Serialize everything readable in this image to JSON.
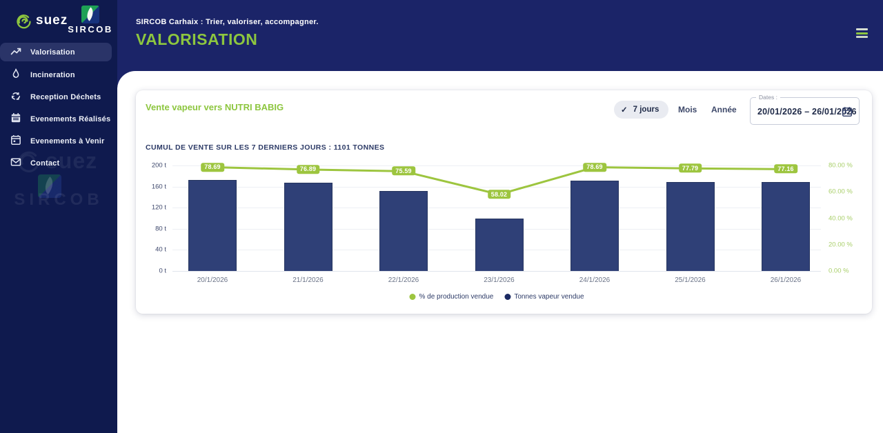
{
  "sidebar": {
    "suez_logo_text": "suez",
    "sircob_logo_text": "SIRCOB",
    "items": [
      {
        "label": "Valorisation",
        "icon": "trend-chart-icon",
        "active": true
      },
      {
        "label": "Incineration",
        "icon": "flame-icon",
        "active": false
      },
      {
        "label": "Reception Déchets",
        "icon": "recycle-icon",
        "active": false
      },
      {
        "label": "Evenements Réalisés",
        "icon": "calendar-filled-icon",
        "active": false
      },
      {
        "label": "Evenements à Venir",
        "icon": "calendar-outline-icon",
        "active": false
      },
      {
        "label": "Contact",
        "icon": "envelope-icon",
        "active": false
      }
    ],
    "watermark_suez_text": "suez",
    "watermark_sircob_text": "SIRCOB"
  },
  "header": {
    "subtitle": "SIRCOB Carhaix : Trier, valoriser, accompagner.",
    "title": "VALORISATION"
  },
  "icons": {
    "check": "✓"
  },
  "card": {
    "title": "Vente vapeur vers NUTRI BABIG",
    "summary": "CUMUL DE VENTE SUR LES 7 DERNIERS JOURS : 1101 TONNES",
    "toolbar": {
      "options": [
        "7 jours",
        "Mois",
        "Année"
      ],
      "selected": "7 jours",
      "dates_label": "Dates :",
      "dates_value": "20/01/2026 – 26/01/2026"
    }
  },
  "chart_data": {
    "type": "bar",
    "categories": [
      "20/1/2026",
      "21/1/2026",
      "22/1/2026",
      "23/1/2026",
      "24/1/2026",
      "25/1/2026",
      "26/1/2026"
    ],
    "series": [
      {
        "name": "Tonnes vapeur vendue",
        "type": "bar",
        "axis": "left",
        "color": "#2f4077",
        "values": [
          172,
          168,
          152,
          100,
          171,
          169,
          169
        ]
      },
      {
        "name": "% de production vendue",
        "type": "line",
        "axis": "right",
        "color": "#9dc53f",
        "values": [
          78.69,
          76.89,
          75.59,
          58.02,
          78.69,
          77.79,
          77.16
        ]
      }
    ],
    "left_axis": {
      "min": 0,
      "max": 200,
      "step": 40,
      "unit": "t",
      "ticks": [
        "0 t",
        "40 t",
        "80 t",
        "120 t",
        "160 t",
        "200 t"
      ]
    },
    "right_axis": {
      "min": 0,
      "max": 80,
      "step": 20,
      "unit": "%",
      "ticks": [
        "0.00 %",
        "20.00 %",
        "40.00 %",
        "60.00 %",
        "80.00 %"
      ]
    },
    "legend": [
      {
        "label": "% de production vendue",
        "color": "#9dc53f"
      },
      {
        "label": "Tonnes vapeur vendue",
        "color": "#1b2a63"
      }
    ],
    "grid": true,
    "legend_position": "bottom-center"
  },
  "colors": {
    "accent_green": "#8dc63f",
    "line_green": "#9dc53f",
    "bar_navy": "#2f4077",
    "banner_navy": "#1b2468",
    "sidebar_navy": "#0f1a4e"
  }
}
